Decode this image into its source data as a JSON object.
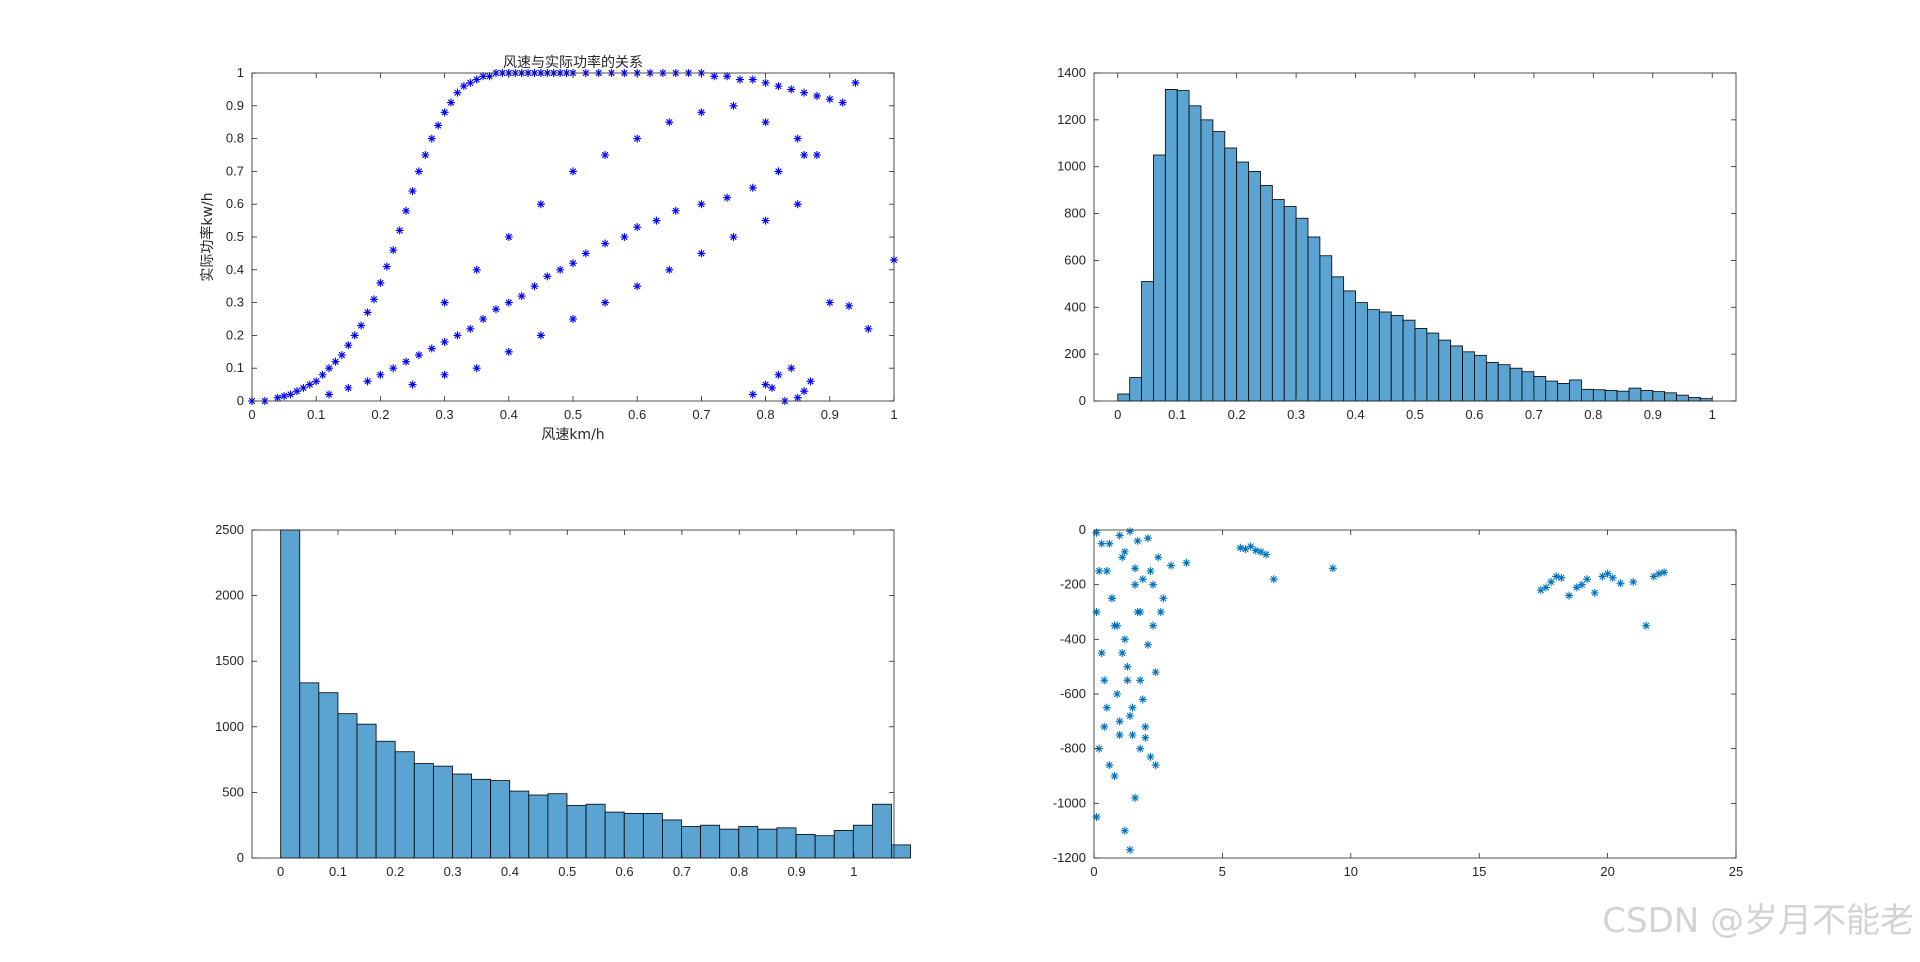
{
  "chart_data": [
    {
      "id": "scatter_power_vs_speed",
      "type": "scatter",
      "title": "风速与实际功率的关系",
      "xlabel": "风速km/h",
      "ylabel": "实际功率kw/h",
      "xlim": [
        0,
        1
      ],
      "ylim": [
        0,
        1
      ],
      "xticks": [
        0,
        0.1,
        0.2,
        0.3,
        0.4,
        0.5,
        0.6,
        0.7,
        0.8,
        0.9,
        1
      ],
      "xtick_labels": [
        "0",
        "0.1",
        "0.2",
        "0.3",
        "0.4",
        "0.5",
        "0.6",
        "0.7",
        "0.8",
        "0.9",
        "1"
      ],
      "yticks": [
        0,
        0.1,
        0.2,
        0.3,
        0.4,
        0.5,
        0.6,
        0.7,
        0.8,
        0.9,
        1
      ],
      "ytick_labels": [
        "0",
        "0.1",
        "0.2",
        "0.3",
        "0.4",
        "0.5",
        "0.6",
        "0.7",
        "0.8",
        "0.9",
        "1"
      ],
      "marker": "*",
      "color": "#0000ff",
      "series": [
        {
          "x": [
            0.0,
            0.02,
            0.04,
            0.05,
            0.06,
            0.07,
            0.08,
            0.09,
            0.1,
            0.11,
            0.12,
            0.13,
            0.14,
            0.15,
            0.16,
            0.17,
            0.18,
            0.19,
            0.2,
            0.21,
            0.22,
            0.23,
            0.24,
            0.25,
            0.26,
            0.27,
            0.28,
            0.29,
            0.3,
            0.31,
            0.32,
            0.33,
            0.34,
            0.35,
            0.36,
            0.37,
            0.38,
            0.39,
            0.4,
            0.41,
            0.42,
            0.43,
            0.44,
            0.45,
            0.46,
            0.47,
            0.48,
            0.49,
            0.5,
            0.52,
            0.54,
            0.56,
            0.58,
            0.6,
            0.62,
            0.64,
            0.66,
            0.68,
            0.7,
            0.72,
            0.74,
            0.76,
            0.78,
            0.8,
            0.82,
            0.84,
            0.86,
            0.88,
            0.9,
            0.92,
            0.94,
            0.96,
            1.0,
            0.12,
            0.15,
            0.18,
            0.2,
            0.22,
            0.24,
            0.26,
            0.28,
            0.3,
            0.32,
            0.34,
            0.36,
            0.38,
            0.4,
            0.42,
            0.44,
            0.46,
            0.48,
            0.5,
            0.52,
            0.55,
            0.58,
            0.6,
            0.63,
            0.66,
            0.7,
            0.74,
            0.78,
            0.82,
            0.86,
            0.25,
            0.3,
            0.35,
            0.4,
            0.45,
            0.5,
            0.55,
            0.6,
            0.65,
            0.7,
            0.75,
            0.8,
            0.85,
            0.9,
            0.93,
            0.3,
            0.35,
            0.4,
            0.45,
            0.5,
            0.55,
            0.6,
            0.65,
            0.7,
            0.75,
            0.8,
            0.85,
            0.88,
            0.78,
            0.8,
            0.82,
            0.84,
            0.86,
            0.87,
            0.85,
            0.83,
            0.81
          ],
          "y": [
            0.0,
            0.0,
            0.01,
            0.015,
            0.02,
            0.03,
            0.04,
            0.05,
            0.06,
            0.08,
            0.1,
            0.12,
            0.14,
            0.17,
            0.2,
            0.23,
            0.27,
            0.31,
            0.36,
            0.41,
            0.46,
            0.52,
            0.58,
            0.64,
            0.7,
            0.75,
            0.8,
            0.84,
            0.88,
            0.91,
            0.94,
            0.96,
            0.97,
            0.98,
            0.99,
            0.99,
            1.0,
            1.0,
            1.0,
            1.0,
            1.0,
            1.0,
            1.0,
            1.0,
            1.0,
            1.0,
            1.0,
            1.0,
            1.0,
            1.0,
            1.0,
            1.0,
            1.0,
            1.0,
            1.0,
            1.0,
            1.0,
            1.0,
            1.0,
            0.99,
            0.99,
            0.98,
            0.98,
            0.97,
            0.96,
            0.95,
            0.94,
            0.93,
            0.92,
            0.91,
            0.97,
            0.22,
            0.43,
            0.02,
            0.04,
            0.06,
            0.08,
            0.1,
            0.12,
            0.14,
            0.16,
            0.18,
            0.2,
            0.22,
            0.25,
            0.28,
            0.3,
            0.32,
            0.35,
            0.38,
            0.4,
            0.42,
            0.45,
            0.48,
            0.5,
            0.53,
            0.55,
            0.58,
            0.6,
            0.62,
            0.65,
            0.7,
            0.75,
            0.05,
            0.08,
            0.1,
            0.15,
            0.2,
            0.25,
            0.3,
            0.35,
            0.4,
            0.45,
            0.5,
            0.55,
            0.6,
            0.3,
            0.29,
            0.3,
            0.4,
            0.5,
            0.6,
            0.7,
            0.75,
            0.8,
            0.85,
            0.88,
            0.9,
            0.85,
            0.8,
            0.75,
            0.02,
            0.05,
            0.08,
            0.1,
            0.03,
            0.06,
            0.01,
            0.0,
            0.04
          ]
        }
      ]
    },
    {
      "id": "histogram_speed",
      "type": "bar",
      "xlim": [
        -0.04,
        1.04
      ],
      "ylim": [
        0,
        1400
      ],
      "bin_width": 0.02,
      "bin_start": 0.0,
      "xticks": [
        0,
        0.1,
        0.2,
        0.3,
        0.4,
        0.5,
        0.6,
        0.7,
        0.8,
        0.9,
        1
      ],
      "xtick_labels": [
        "0",
        "0.1",
        "0.2",
        "0.3",
        "0.4",
        "0.5",
        "0.6",
        "0.7",
        "0.8",
        "0.9",
        "1"
      ],
      "yticks": [
        0,
        200,
        400,
        600,
        800,
        1000,
        1200,
        1400
      ],
      "ytick_labels": [
        "0",
        "200",
        "400",
        "600",
        "800",
        "1000",
        "1200",
        "1400"
      ],
      "color": "#5ba3d0",
      "values": [
        30,
        100,
        510,
        1050,
        1330,
        1325,
        1260,
        1200,
        1150,
        1080,
        1020,
        980,
        920,
        860,
        830,
        780,
        700,
        620,
        530,
        470,
        420,
        390,
        380,
        365,
        345,
        310,
        290,
        260,
        235,
        210,
        195,
        165,
        155,
        140,
        125,
        105,
        85,
        75,
        90,
        50,
        48,
        45,
        42,
        55,
        45,
        40,
        35,
        25,
        15,
        10
      ]
    },
    {
      "id": "histogram_power",
      "type": "bar",
      "xlim": [
        -0.05,
        1.07
      ],
      "ylim": [
        0,
        2500
      ],
      "bin_width": 0.0333,
      "bin_start": 0.0,
      "xticks": [
        0,
        0.1,
        0.2,
        0.3,
        0.4,
        0.5,
        0.6,
        0.7,
        0.8,
        0.9,
        1
      ],
      "xtick_labels": [
        "0",
        "0.1",
        "0.2",
        "0.3",
        "0.4",
        "0.5",
        "0.6",
        "0.7",
        "0.8",
        "0.9",
        "1"
      ],
      "yticks": [
        0,
        500,
        1000,
        1500,
        2000,
        2500
      ],
      "ytick_labels": [
        "0",
        "500",
        "1000",
        "1500",
        "2000",
        "2500"
      ],
      "color": "#5ba3d0",
      "values": [
        2500,
        1335,
        1260,
        1100,
        1020,
        890,
        810,
        720,
        700,
        640,
        600,
        590,
        510,
        480,
        490,
        400,
        410,
        350,
        340,
        340,
        290,
        240,
        250,
        220,
        240,
        220,
        230,
        180,
        170,
        210,
        250,
        410,
        100
      ]
    },
    {
      "id": "scatter_raw",
      "type": "scatter",
      "xlim": [
        0,
        25
      ],
      "ylim": [
        -1200,
        0
      ],
      "xticks": [
        0,
        5,
        10,
        15,
        20,
        25
      ],
      "xtick_labels": [
        "0",
        "5",
        "10",
        "15",
        "20",
        "25"
      ],
      "yticks": [
        -1200,
        -1000,
        -800,
        -600,
        -400,
        -200,
        0
      ],
      "ytick_labels": [
        "-1200",
        "-1000",
        "-800",
        "-600",
        "-400",
        "-200",
        "0"
      ],
      "marker": "*",
      "color": "#0072bd",
      "series": [
        {
          "x": [
            0.1,
            0.1,
            0.2,
            0.3,
            0.4,
            0.5,
            0.6,
            0.7,
            0.8,
            0.9,
            1.0,
            1.1,
            1.2,
            1.3,
            1.4,
            1.5,
            1.6,
            1.7,
            1.8,
            1.9,
            2.0,
            2.1,
            2.2,
            2.3,
            2.4,
            2.5,
            2.6,
            2.7,
            0.2,
            0.4,
            0.6,
            0.8,
            1.0,
            1.2,
            1.4,
            1.6,
            1.8,
            2.0,
            2.2,
            2.4,
            0.3,
            0.5,
            0.7,
            0.9,
            1.1,
            1.3,
            1.5,
            1.7,
            1.9,
            2.1,
            2.3,
            1.0,
            1.2,
            1.4,
            1.6,
            1.8,
            0.1,
            3.0,
            3.6,
            5.7,
            5.9,
            6.1,
            6.3,
            6.5,
            6.7,
            7.0,
            9.3,
            17.4,
            17.6,
            17.8,
            18.0,
            18.2,
            18.5,
            18.8,
            19.0,
            19.2,
            19.5,
            19.8,
            20.0,
            20.2,
            20.5,
            21.0,
            21.5,
            21.8,
            22.0,
            22.2
          ],
          "y": [
            -10,
            -300,
            -150,
            -450,
            -550,
            -650,
            -50,
            -250,
            -350,
            -600,
            -700,
            -100,
            -400,
            -500,
            -680,
            -750,
            -200,
            -300,
            -550,
            -620,
            -720,
            -30,
            -150,
            -350,
            -520,
            -100,
            -300,
            -250,
            -800,
            -720,
            -860,
            -900,
            -750,
            -1100,
            -1170,
            -980,
            -800,
            -760,
            -830,
            -860,
            -50,
            -150,
            -250,
            -350,
            -450,
            -550,
            -650,
            -40,
            -180,
            -420,
            -200,
            -20,
            -80,
            -5,
            -140,
            -300,
            -1050,
            -130,
            -120,
            -65,
            -70,
            -60,
            -75,
            -80,
            -90,
            -180,
            -140,
            -220,
            -210,
            -190,
            -170,
            -175,
            -240,
            -210,
            -200,
            -180,
            -230,
            -170,
            -160,
            -175,
            -195,
            -190,
            -350,
            -170,
            -160,
            -155
          ]
        }
      ]
    }
  ],
  "watermark": "CSDN @岁月不能老"
}
